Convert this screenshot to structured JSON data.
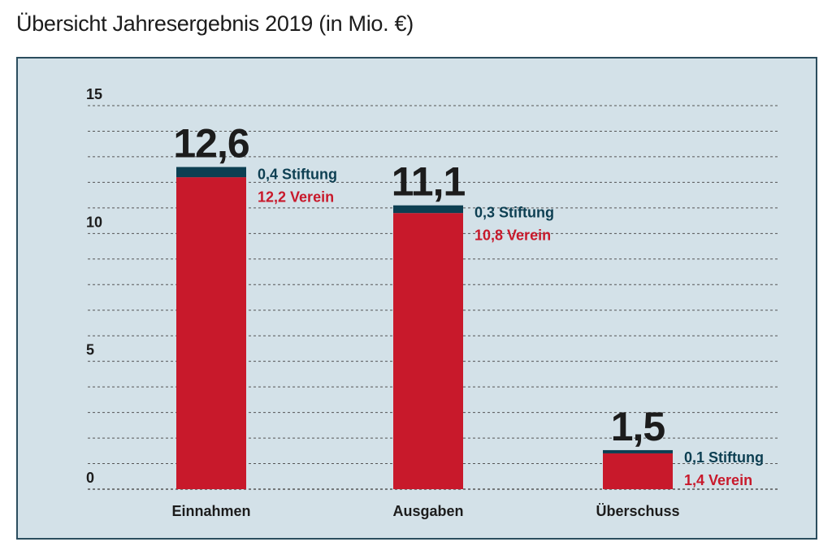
{
  "title": "Übersicht Jahresergebnis 2019 (in Mio. €)",
  "colors": {
    "verein": "#c8192b",
    "stiftung": "#0d3f52",
    "panel_bg": "#d3e1e8",
    "panel_border": "#2b4d5e",
    "grid": "#555555"
  },
  "chart_data": {
    "type": "bar",
    "stacked": true,
    "title": "Übersicht Jahresergebnis 2019 (in Mio. €)",
    "categories": [
      "Einnahmen",
      "Ausgaben",
      "Überschuss"
    ],
    "totals": [
      12.6,
      11.1,
      1.5
    ],
    "total_labels": [
      "12,6",
      "11,1",
      "1,5"
    ],
    "series": [
      {
        "name": "Verein",
        "values": [
          12.2,
          10.8,
          1.4
        ],
        "labels": [
          "12,2 Verein",
          "10,8 Verein",
          "1,4 Verein"
        ]
      },
      {
        "name": "Stiftung",
        "values": [
          0.4,
          0.3,
          0.1
        ],
        "labels": [
          "0,4 Stiftung",
          "0,3 Stiftung",
          "0,1 Stiftung"
        ]
      }
    ],
    "ylim": [
      0,
      15
    ],
    "y_ticks": [
      0,
      5,
      10,
      15
    ],
    "y_tick_labels": [
      "0",
      "5",
      "10",
      "15"
    ],
    "grid": true,
    "legend": "none"
  }
}
